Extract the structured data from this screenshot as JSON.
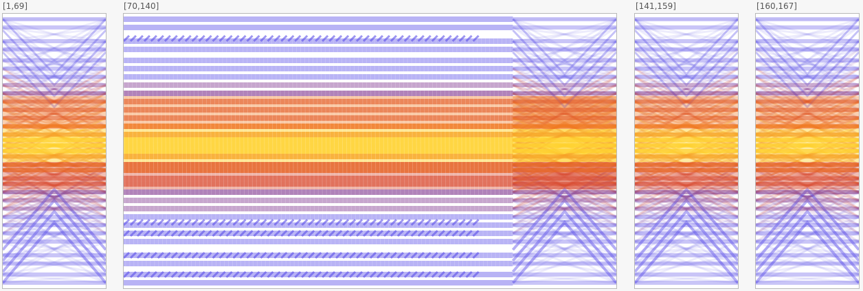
{
  "chart_data": {
    "type": "parallel-sets-density",
    "panels": [
      {
        "label": "[1,69]",
        "range": [
          1,
          69
        ]
      },
      {
        "label": "[70,140]",
        "range": [
          70,
          140
        ]
      },
      {
        "label": "[141,159]",
        "range": [
          141,
          159
        ]
      },
      {
        "label": "[160,167]",
        "range": [
          160,
          167
        ]
      }
    ],
    "color_scale": {
      "low": "#5a4ee8",
      "mid_low": "#7b2f8a",
      "mid": "#d8452a",
      "mid_high": "#f07820",
      "high": "#ffd22e"
    },
    "background": "#ffffff",
    "frame_color": "#b8b8b8"
  }
}
